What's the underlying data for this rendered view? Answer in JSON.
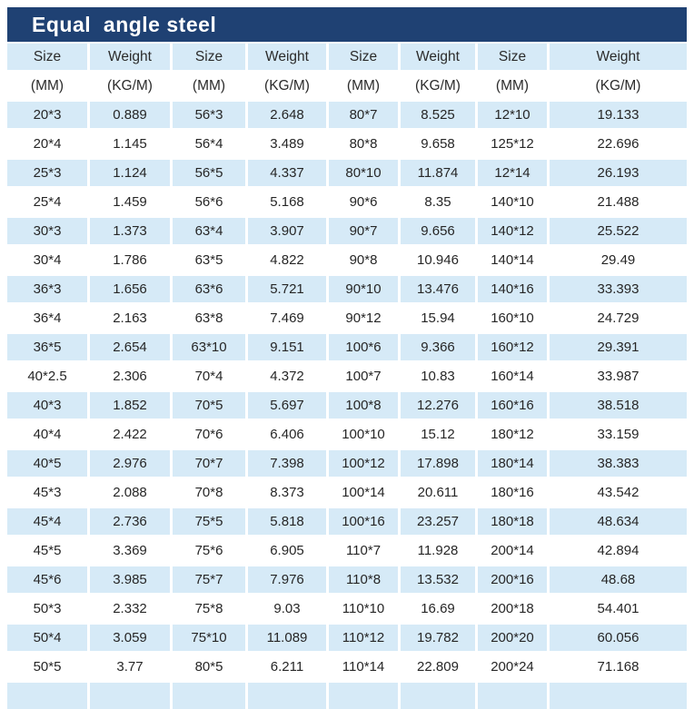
{
  "title": "Equal  angle steel",
  "colors": {
    "title_bar_bg": "#1F4173",
    "title_text": "#FFFFFF",
    "stripe_bg": "#D6EAF7",
    "body_text": "#262626"
  },
  "table": {
    "header_labels": [
      "Size",
      "Weight",
      "Size",
      "Weight",
      "Size",
      "Weight",
      "Size",
      "Weight"
    ],
    "header_units": [
      "(MM)",
      "(KG/M)",
      "(MM)",
      "(KG/M)",
      "(MM)",
      "(KG/M)",
      "(MM)",
      "(KG/M)"
    ],
    "rows": [
      [
        "20*3",
        "0.889",
        "56*3",
        "2.648",
        "80*7",
        "8.525",
        "12*10",
        "19.133"
      ],
      [
        "20*4",
        "1.145",
        "56*4",
        "3.489",
        "80*8",
        "9.658",
        "125*12",
        "22.696"
      ],
      [
        "25*3",
        "1.124",
        "56*5",
        "4.337",
        "80*10",
        "11.874",
        "12*14",
        "26.193"
      ],
      [
        "25*4",
        "1.459",
        "56*6",
        "5.168",
        "90*6",
        "8.35",
        "140*10",
        "21.488"
      ],
      [
        "30*3",
        "1.373",
        "63*4",
        "3.907",
        "90*7",
        "9.656",
        "140*12",
        "25.522"
      ],
      [
        "30*4",
        "1.786",
        "63*5",
        "4.822",
        "90*8",
        "10.946",
        "140*14",
        "29.49"
      ],
      [
        "36*3",
        "1.656",
        "63*6",
        "5.721",
        "90*10",
        "13.476",
        "140*16",
        "33.393"
      ],
      [
        "36*4",
        "2.163",
        "63*8",
        "7.469",
        "90*12",
        "15.94",
        "160*10",
        "24.729"
      ],
      [
        "36*5",
        "2.654",
        "63*10",
        "9.151",
        "100*6",
        "9.366",
        "160*12",
        "29.391"
      ],
      [
        "40*2.5",
        "2.306",
        "70*4",
        "4.372",
        "100*7",
        "10.83",
        "160*14",
        "33.987"
      ],
      [
        "40*3",
        "1.852",
        "70*5",
        "5.697",
        "100*8",
        "12.276",
        "160*16",
        "38.518"
      ],
      [
        "40*4",
        "2.422",
        "70*6",
        "6.406",
        "100*10",
        "15.12",
        "180*12",
        "33.159"
      ],
      [
        "40*5",
        "2.976",
        "70*7",
        "7.398",
        "100*12",
        "17.898",
        "180*14",
        "38.383"
      ],
      [
        "45*3",
        "2.088",
        "70*8",
        "8.373",
        "100*14",
        "20.611",
        "180*16",
        "43.542"
      ],
      [
        "45*4",
        "2.736",
        "75*5",
        "5.818",
        "100*16",
        "23.257",
        "180*18",
        "48.634"
      ],
      [
        "45*5",
        "3.369",
        "75*6",
        "6.905",
        "110*7",
        "11.928",
        "200*14",
        "42.894"
      ],
      [
        "45*6",
        "3.985",
        "75*7",
        "7.976",
        "110*8",
        "13.532",
        "200*16",
        "48.68"
      ],
      [
        "50*3",
        "2.332",
        "75*8",
        "9.03",
        "110*10",
        "16.69",
        "200*18",
        "54.401"
      ],
      [
        "50*4",
        "3.059",
        "75*10",
        "11.089",
        "110*12",
        "19.782",
        "200*20",
        "60.056"
      ],
      [
        "50*5",
        "3.77",
        "80*5",
        "6.211",
        "110*14",
        "22.809",
        "200*24",
        "71.168"
      ]
    ]
  }
}
